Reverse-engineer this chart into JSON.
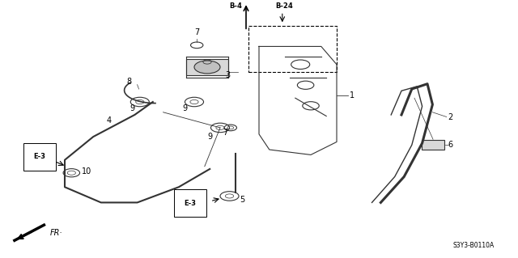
{
  "title": "",
  "bg_color": "#ffffff",
  "diagram_color": "#333333",
  "label_color": "#000000",
  "fig_width": 6.4,
  "fig_height": 3.19,
  "dpi": 100,
  "diagram_code_text": "S3Y3-B0110A"
}
